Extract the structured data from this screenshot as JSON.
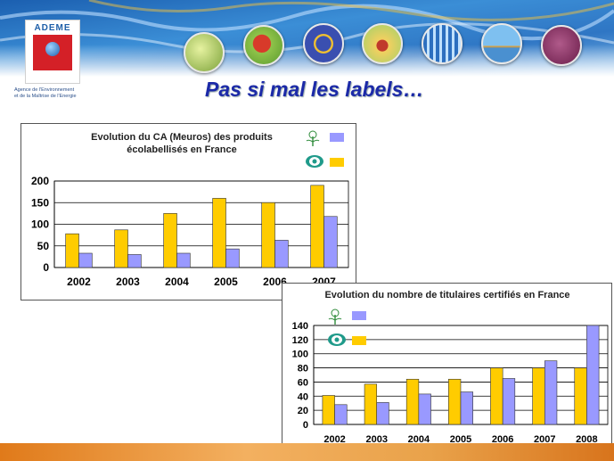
{
  "logo": {
    "name": "ADEME",
    "agency_line1": "Agence de l'Environnement",
    "agency_line2": "et de la Maîtrise de l'Energie"
  },
  "theme_icons": [
    "balloon-theme-icon",
    "france-map-theme-icon",
    "eu-stars-theme-icon",
    "house-theme-icon",
    "chart-theme-icon",
    "landscape-theme-icon",
    "hammer-theme-icon"
  ],
  "page_title": "Pas si mal les labels…",
  "colors": {
    "eu_ecolabel": "#9999ff",
    "nf_environnement": "#ffcc00",
    "title": "#1c2aa8"
  },
  "chart_data": [
    {
      "type": "bar",
      "title": "Evolution du CA (Meuros) des produits écolabellisés en France",
      "categories": [
        "2002",
        "2003",
        "2004",
        "2005",
        "2006",
        "2007"
      ],
      "series": [
        {
          "legend_icon": "nf-environnement-logo-icon",
          "color": "#ffcc00",
          "values": [
            78,
            87,
            125,
            160,
            150,
            190
          ]
        },
        {
          "legend_icon": "eu-ecolabel-flower-icon",
          "color": "#9999ff",
          "values": [
            33,
            30,
            33,
            43,
            63,
            118
          ]
        }
      ],
      "ylim": [
        0,
        200
      ],
      "yticks": [
        0,
        50,
        100,
        150,
        200
      ],
      "grid": true,
      "legend_position": "top-right"
    },
    {
      "type": "bar",
      "title": "Evolution du nombre de titulaires certifiés en France",
      "categories": [
        "2002",
        "2003",
        "2004",
        "2005",
        "2006",
        "2007",
        "2008"
      ],
      "series": [
        {
          "legend_icon": "nf-environnement-logo-icon",
          "color": "#ffcc00",
          "values": [
            41,
            57,
            64,
            64,
            80,
            80,
            80
          ]
        },
        {
          "legend_icon": "eu-ecolabel-flower-icon",
          "color": "#9999ff",
          "values": [
            28,
            31,
            43,
            46,
            65,
            90,
            140
          ]
        }
      ],
      "ylim": [
        0,
        140
      ],
      "yticks": [
        0,
        20,
        40,
        60,
        80,
        100,
        120,
        140
      ],
      "grid": true,
      "legend_position": "top-left"
    }
  ]
}
